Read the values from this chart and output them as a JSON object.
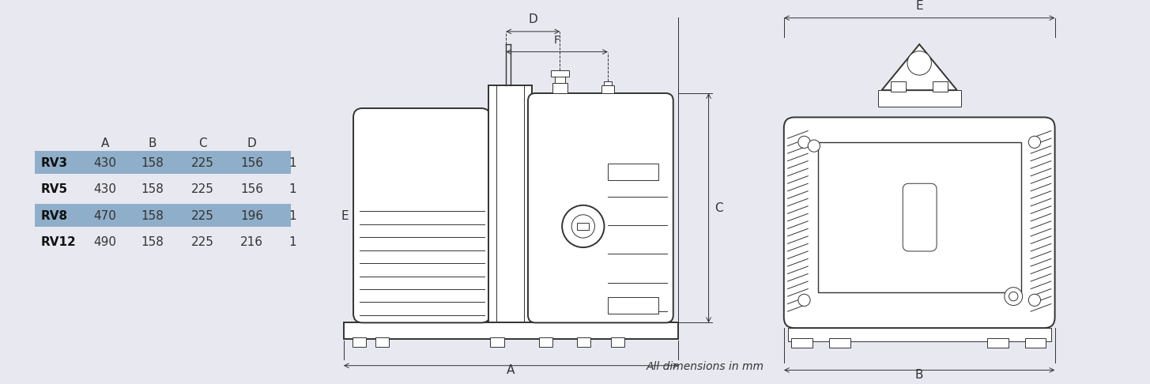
{
  "bg_color": "#e8e8f0",
  "col_headers": [
    "",
    "A",
    "B",
    "C",
    "D"
  ],
  "rows": [
    {
      "label": "RV3",
      "A": "430",
      "B": "158",
      "C": "225",
      "D": "156",
      "highlight": true
    },
    {
      "label": "RV5",
      "A": "430",
      "B": "158",
      "C": "225",
      "D": "156",
      "highlight": false
    },
    {
      "label": "RV8",
      "A": "470",
      "B": "158",
      "C": "225",
      "D": "196",
      "highlight": true
    },
    {
      "label": "RV12",
      "A": "490",
      "B": "158",
      "C": "225",
      "D": "216",
      "highlight": false
    }
  ],
  "highlight_color": "#8faec9",
  "normal_color": "#e8e8f0",
  "text_color": "#222222",
  "drawing_color": "#333333",
  "col_note": "All dimensions in mm"
}
